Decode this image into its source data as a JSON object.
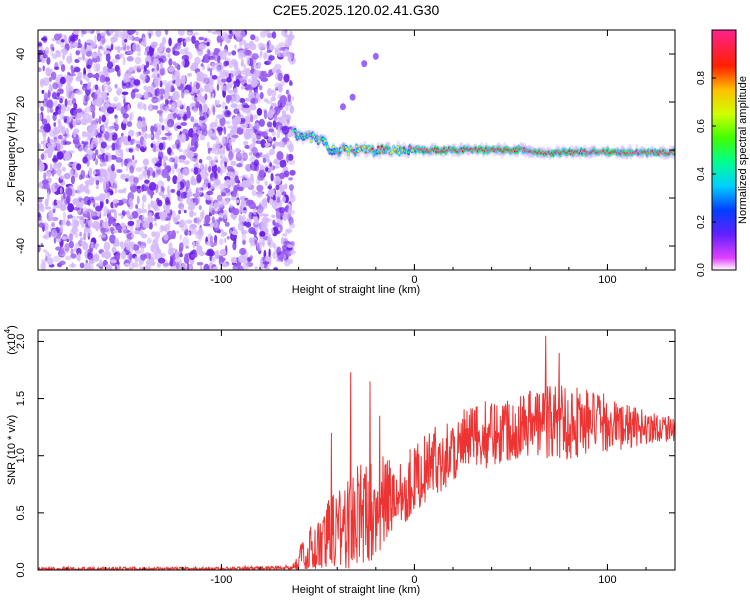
{
  "chart_data": [
    {
      "type": "heatmap",
      "title": "C2E5.2025.120.02.41.G30",
      "xlabel": "Height of straight line (km)",
      "ylabel": "Frequency (Hz)",
      "xlim": [
        -195,
        135
      ],
      "ylim": [
        -50,
        50
      ],
      "xticks": [
        -100,
        0,
        100
      ],
      "yticks": [
        -40,
        -20,
        0,
        20,
        40
      ],
      "grid": false,
      "colorbar": {
        "label": "Normalized spectral amplitude",
        "range": [
          0,
          1
        ],
        "ticks": [
          "0.0",
          "0.2",
          "0.4",
          "0.6",
          "0.8"
        ],
        "colormap": [
          "#ff00ff",
          "#ff0000",
          "#ffff00",
          "#00ff00",
          "#00ffff",
          "#0000ff",
          "#ff00ff",
          "#ffffff"
        ]
      },
      "regions": {
        "noise_band_x": [
          -195,
          -63
        ],
        "signal_line_x": [
          -63,
          135
        ],
        "signal_line_frequency": 0,
        "early_frequency_at_x_-60": 7,
        "faint_spots": [
          [
            -37,
            18
          ],
          [
            -32,
            22
          ],
          [
            -26,
            36
          ],
          [
            -20,
            39
          ]
        ]
      }
    },
    {
      "type": "line",
      "title": "",
      "xlabel": "Height of straight line (km)",
      "ylabel": "SNR (10 * v/v)",
      "y_multiplier": "(x10",
      "y_multiplier_exp": "4",
      "xlim": [
        -195,
        135
      ],
      "ylim": [
        0,
        2.1
      ],
      "xticks": [
        -100,
        0,
        100
      ],
      "yticks": [
        "0.0",
        "0.5",
        "1.0",
        "1.5",
        "2.0"
      ],
      "grid": false,
      "series": [
        {
          "color": "#ee3333",
          "envelope": {
            "x": [
              -195,
              -100,
              -65,
              -55,
              -45,
              -40,
              -35,
              -30,
              -25,
              -20,
              -10,
              0,
              10,
              20,
              30,
              40,
              50,
              60,
              70,
              80,
              90,
              100,
              110,
              120,
              135
            ],
            "base": [
              0.01,
              0.01,
              0.02,
              0.1,
              0.2,
              0.3,
              0.4,
              0.45,
              0.5,
              0.55,
              0.65,
              0.8,
              0.95,
              1.05,
              1.15,
              1.2,
              1.25,
              1.3,
              1.3,
              1.3,
              1.3,
              1.28,
              1.25,
              1.25,
              1.25
            ],
            "amp": [
              0.015,
              0.015,
              0.02,
              0.25,
              0.4,
              0.6,
              0.5,
              0.5,
              0.45,
              0.45,
              0.35,
              0.3,
              0.3,
              0.3,
              0.3,
              0.3,
              0.3,
              0.3,
              0.35,
              0.35,
              0.3,
              0.25,
              0.2,
              0.15,
              0.12
            ]
          },
          "peaks": [
            [
              -43,
              1.2
            ],
            [
              -33,
              1.73
            ],
            [
              -23,
              1.65
            ],
            [
              -18,
              1.35
            ],
            [
              68,
              2.05
            ],
            [
              75,
              1.9
            ]
          ]
        }
      ]
    }
  ]
}
